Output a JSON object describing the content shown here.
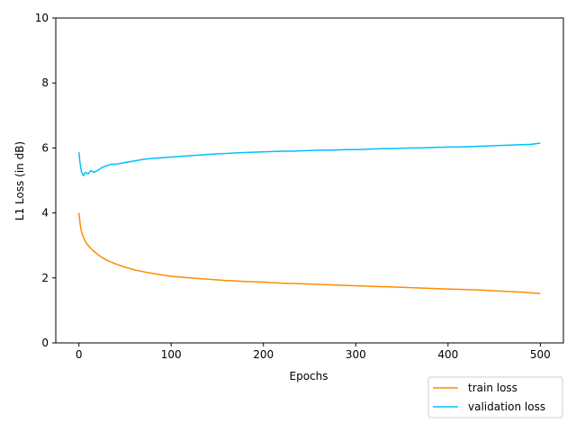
{
  "chart_data": {
    "type": "line",
    "title": "",
    "xlabel": "Epochs",
    "ylabel": "L1 Loss (in dB)",
    "xlim": [
      -25,
      525
    ],
    "ylim": [
      0,
      10
    ],
    "xticks": [
      0,
      100,
      200,
      300,
      400,
      500
    ],
    "yticks": [
      0,
      2,
      4,
      6,
      8,
      10
    ],
    "grid": false,
    "legend_position": "lower-right-outside",
    "series": [
      {
        "name": "train loss",
        "color": "#ff8c00",
        "x": [
          0,
          1,
          2,
          3,
          5,
          7,
          10,
          15,
          20,
          25,
          30,
          40,
          50,
          60,
          70,
          80,
          90,
          100,
          120,
          140,
          160,
          180,
          200,
          220,
          240,
          260,
          280,
          300,
          320,
          340,
          360,
          380,
          400,
          420,
          440,
          460,
          480,
          500
        ],
        "values": [
          4.0,
          3.75,
          3.55,
          3.4,
          3.25,
          3.12,
          3.0,
          2.85,
          2.73,
          2.63,
          2.55,
          2.43,
          2.33,
          2.25,
          2.19,
          2.14,
          2.09,
          2.05,
          2.0,
          1.96,
          1.92,
          1.89,
          1.87,
          1.84,
          1.82,
          1.8,
          1.78,
          1.76,
          1.74,
          1.72,
          1.7,
          1.68,
          1.66,
          1.64,
          1.62,
          1.59,
          1.56,
          1.52
        ]
      },
      {
        "name": "validation loss",
        "color": "#00bfff",
        "x": [
          0,
          1,
          2,
          3,
          4,
          5,
          7,
          10,
          13,
          16,
          20,
          25,
          30,
          35,
          40,
          50,
          60,
          70,
          80,
          90,
          100,
          110,
          120,
          130,
          140,
          150,
          160,
          170,
          180,
          190,
          200,
          210,
          220,
          230,
          240,
          250,
          260,
          270,
          280,
          290,
          300,
          310,
          320,
          330,
          340,
          350,
          360,
          370,
          380,
          390,
          400,
          410,
          420,
          430,
          440,
          450,
          460,
          470,
          480,
          490,
          500
        ],
        "values": [
          5.87,
          5.6,
          5.4,
          5.25,
          5.2,
          5.15,
          5.25,
          5.2,
          5.3,
          5.25,
          5.3,
          5.4,
          5.45,
          5.5,
          5.5,
          5.55,
          5.6,
          5.65,
          5.68,
          5.7,
          5.72,
          5.74,
          5.76,
          5.78,
          5.8,
          5.82,
          5.83,
          5.85,
          5.86,
          5.87,
          5.88,
          5.89,
          5.9,
          5.9,
          5.91,
          5.92,
          5.93,
          5.93,
          5.94,
          5.95,
          5.95,
          5.96,
          5.97,
          5.98,
          5.98,
          5.99,
          6.0,
          6.0,
          6.01,
          6.02,
          6.03,
          6.03,
          6.04,
          6.05,
          6.06,
          6.07,
          6.08,
          6.09,
          6.1,
          6.11,
          6.15
        ]
      }
    ]
  }
}
